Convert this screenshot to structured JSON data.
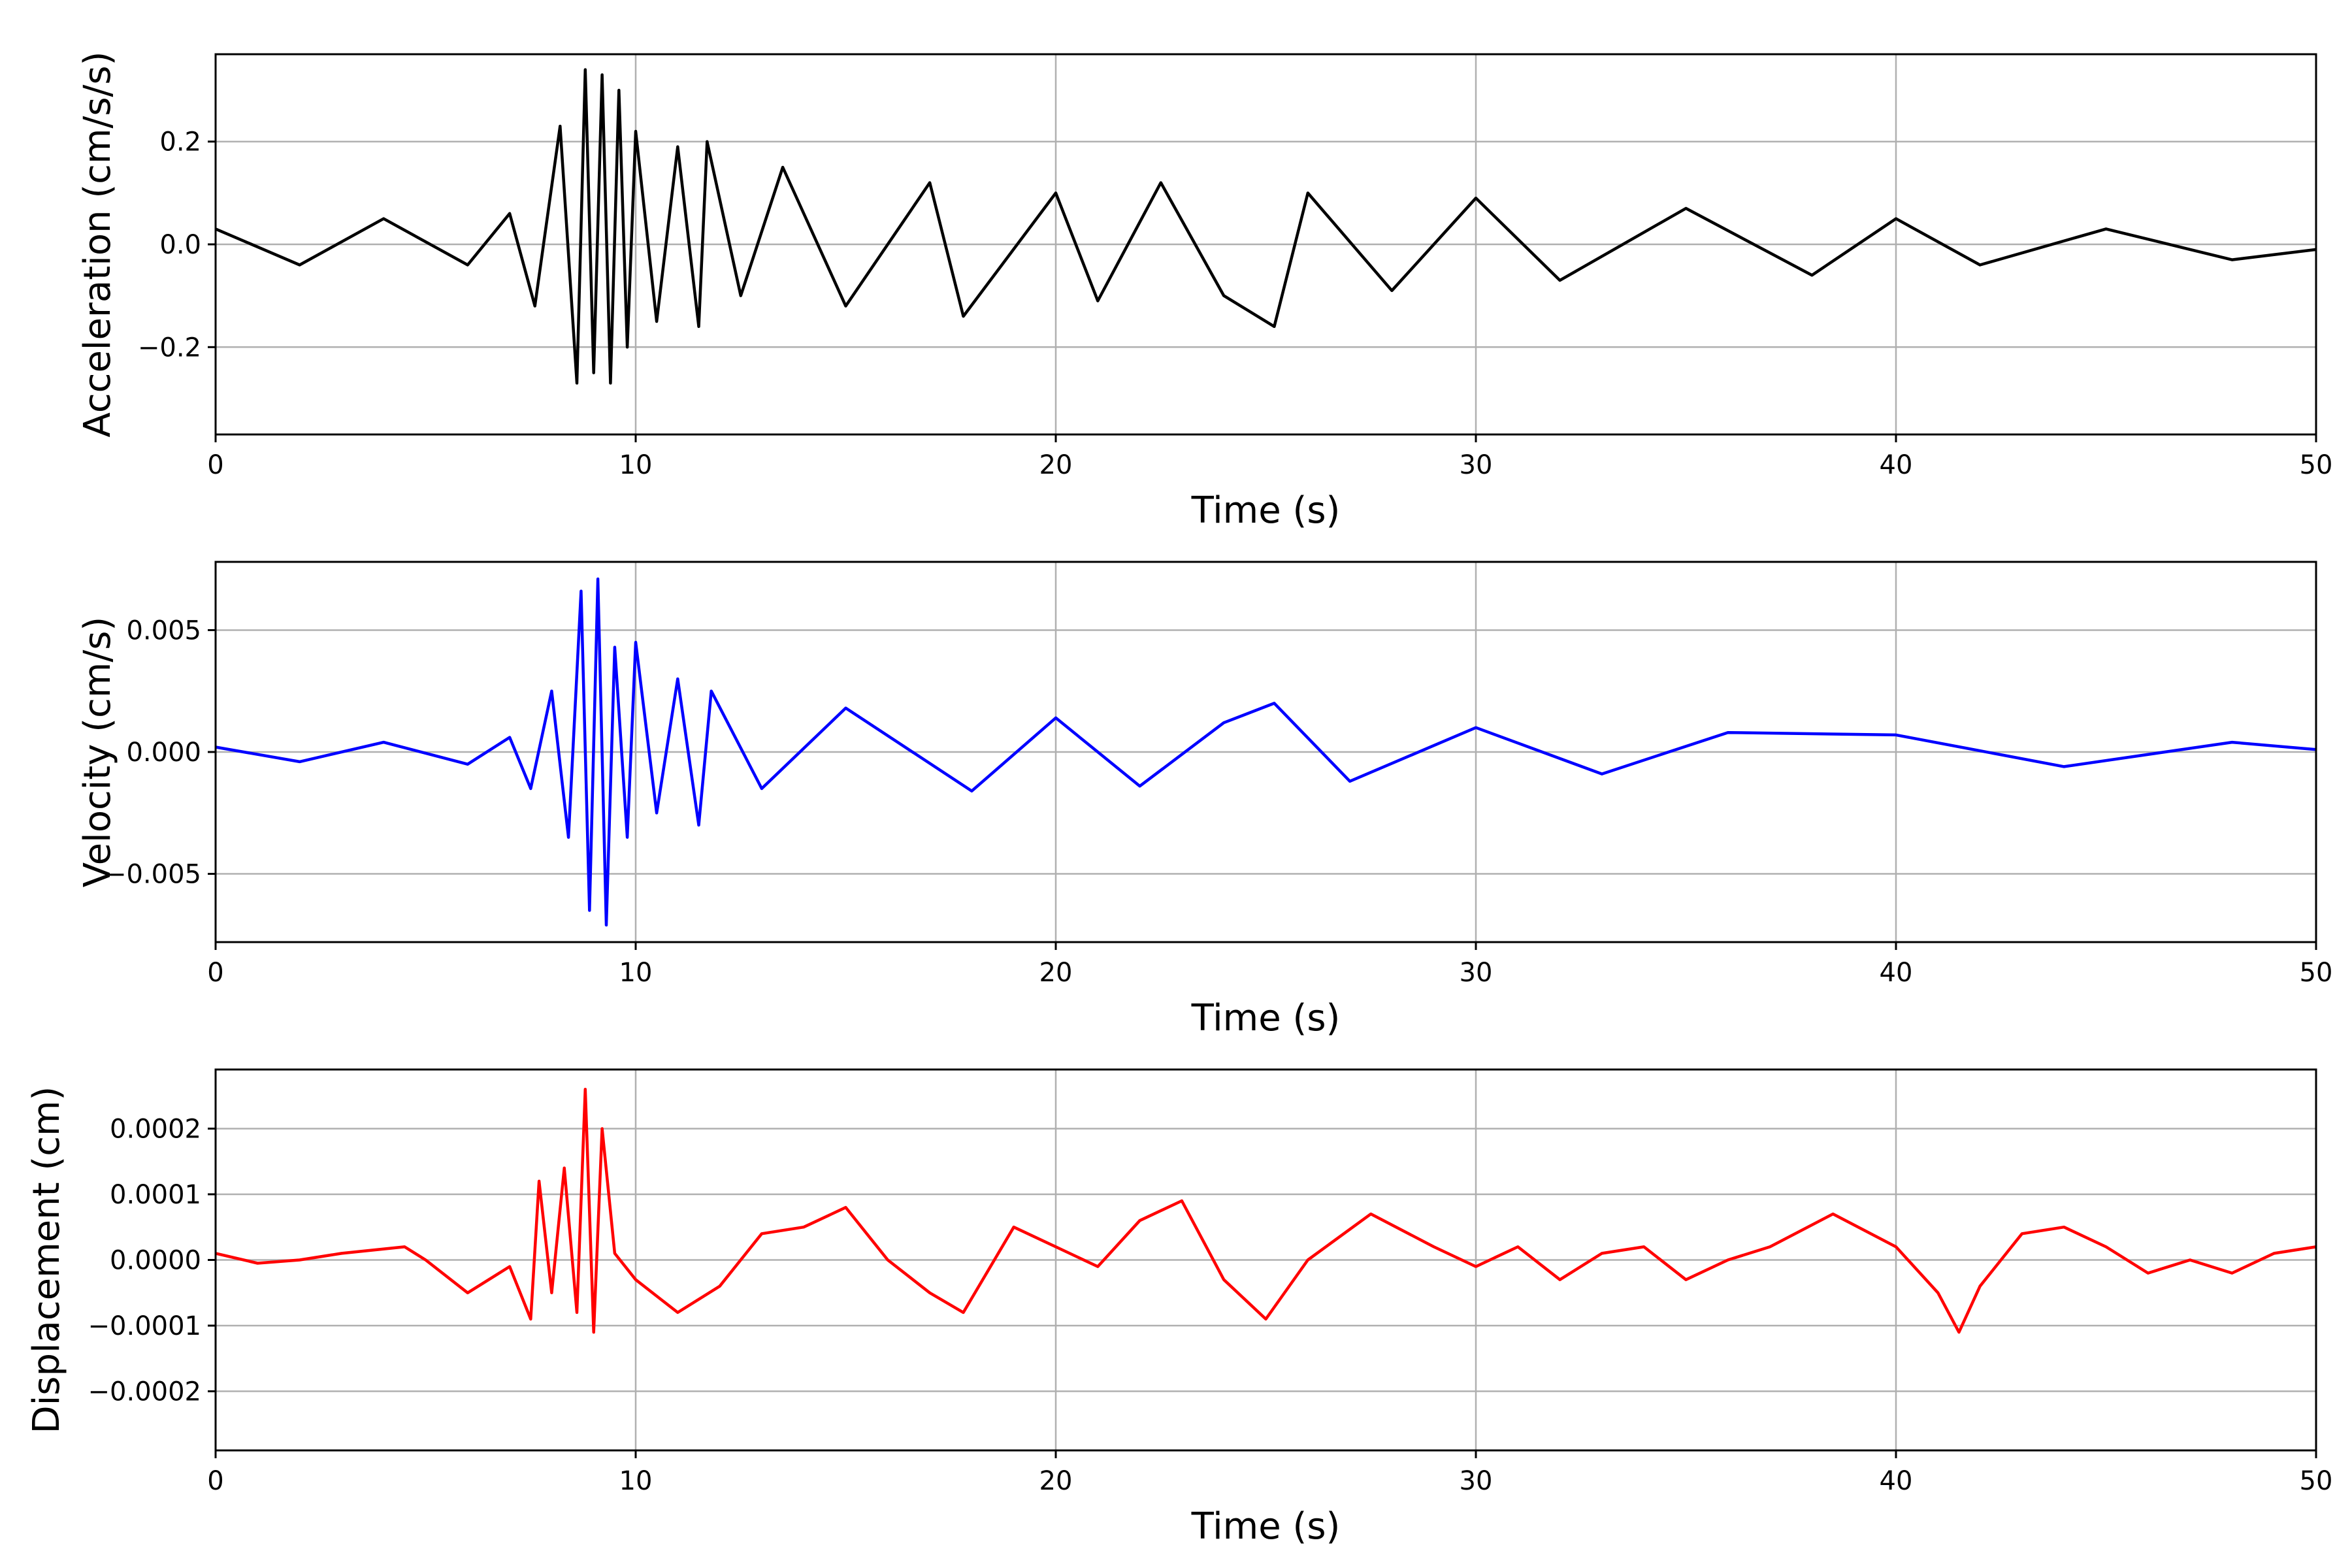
{
  "chart_data": [
    {
      "type": "line",
      "xlabel": "Time (s)",
      "ylabel": "Acceleration (cm/s/s)",
      "xlim": [
        0,
        50
      ],
      "ylim": [
        -0.37,
        0.37
      ],
      "xticks": [
        0,
        10,
        20,
        30,
        40,
        50
      ],
      "xtick_labels": [
        "0",
        "10",
        "20",
        "30",
        "40",
        "50"
      ],
      "yticks": [
        -0.2,
        0.0,
        0.2
      ],
      "ytick_labels": [
        "−0.2",
        "0.0",
        "0.2"
      ],
      "grid": true,
      "color": "#000000",
      "series": [
        {
          "x": [
            0,
            2,
            4,
            6,
            7,
            7.6,
            8.2,
            8.6,
            8.8,
            9.0,
            9.2,
            9.4,
            9.6,
            9.8,
            10.0,
            10.5,
            11.0,
            11.5,
            11.7,
            12.5,
            13.5,
            15,
            17,
            17.8,
            20,
            21,
            22.5,
            24,
            25.2,
            26,
            28,
            30,
            32,
            35,
            38,
            40,
            42,
            45,
            48,
            50
          ],
          "y": [
            0.03,
            -0.04,
            0.05,
            -0.04,
            0.06,
            -0.12,
            0.23,
            -0.27,
            0.34,
            -0.25,
            0.33,
            -0.27,
            0.3,
            -0.2,
            0.22,
            -0.15,
            0.19,
            -0.16,
            0.2,
            -0.1,
            0.15,
            -0.12,
            0.12,
            -0.14,
            0.1,
            -0.11,
            0.12,
            -0.1,
            -0.16,
            0.1,
            -0.09,
            0.09,
            -0.07,
            0.07,
            -0.06,
            0.05,
            -0.04,
            0.03,
            -0.03,
            -0.01
          ]
        }
      ]
    },
    {
      "type": "line",
      "xlabel": "Time (s)",
      "ylabel": "Velocity (cm/s)",
      "xlim": [
        0,
        50
      ],
      "ylim": [
        -0.0078,
        0.0078
      ],
      "xticks": [
        0,
        10,
        20,
        30,
        40,
        50
      ],
      "xtick_labels": [
        "0",
        "10",
        "20",
        "30",
        "40",
        "50"
      ],
      "yticks": [
        -0.005,
        0.0,
        0.005
      ],
      "ytick_labels": [
        "−0.005",
        "0.000",
        "0.005"
      ],
      "grid": true,
      "color": "#0000ff",
      "series": [
        {
          "x": [
            0,
            2,
            4,
            6,
            7,
            7.5,
            8.0,
            8.4,
            8.7,
            8.9,
            9.1,
            9.3,
            9.5,
            9.8,
            10.0,
            10.5,
            11.0,
            11.5,
            11.8,
            13,
            15,
            18,
            20,
            22,
            24,
            25.2,
            27,
            30,
            33,
            36,
            40,
            44,
            48,
            50
          ],
          "y": [
            0.0002,
            -0.0004,
            0.0004,
            -0.0005,
            0.0006,
            -0.0015,
            0.0025,
            -0.0035,
            0.0066,
            -0.0065,
            0.0071,
            -0.0071,
            0.0043,
            -0.0035,
            0.0045,
            -0.0025,
            0.003,
            -0.003,
            0.0025,
            -0.0015,
            0.0018,
            -0.0016,
            0.0014,
            -0.0014,
            0.0012,
            0.002,
            -0.0012,
            0.001,
            -0.0009,
            0.0008,
            0.0007,
            -0.0006,
            0.0004,
            0.0001
          ]
        }
      ]
    },
    {
      "type": "line",
      "xlabel": "Time (s)",
      "ylabel": "Displacement (cm)",
      "xlim": [
        0,
        50
      ],
      "ylim": [
        -0.00029,
        0.00029
      ],
      "xticks": [
        0,
        10,
        20,
        30,
        40,
        50
      ],
      "xtick_labels": [
        "0",
        "10",
        "20",
        "30",
        "40",
        "50"
      ],
      "yticks": [
        -0.0002,
        -0.0001,
        0.0,
        0.0001,
        0.0002
      ],
      "ytick_labels": [
        "−0.0002",
        "−0.0001",
        "0.0000",
        "0.0001",
        "0.0002"
      ],
      "grid": true,
      "color": "#ff0000",
      "series": [
        {
          "x": [
            0,
            1,
            2,
            3,
            4.5,
            5,
            6,
            7,
            7.5,
            7.7,
            8.0,
            8.3,
            8.6,
            8.8,
            9.0,
            9.2,
            9.5,
            10,
            11,
            12,
            13,
            14,
            15,
            16,
            17,
            17.8,
            19,
            20,
            21,
            22,
            23,
            24,
            25,
            26,
            27.5,
            29,
            30,
            31,
            32,
            33,
            34,
            35,
            36,
            37,
            38.5,
            40,
            41,
            41.5,
            42,
            43,
            44,
            45,
            46,
            47,
            48,
            49,
            50
          ],
          "y": [
            1e-05,
            -5e-06,
            0.0,
            1e-05,
            2e-05,
            0.0,
            -5e-05,
            -1e-05,
            -9e-05,
            0.00012,
            -5e-05,
            0.00014,
            -8e-05,
            0.00026,
            -0.00011,
            0.0002,
            1e-05,
            -3e-05,
            -8e-05,
            -4e-05,
            4e-05,
            5e-05,
            8e-05,
            0.0,
            -5e-05,
            -8e-05,
            5e-05,
            2e-05,
            -1e-05,
            6e-05,
            9e-05,
            -3e-05,
            -9e-05,
            0.0,
            7e-05,
            2e-05,
            -1e-05,
            2e-05,
            -3e-05,
            1e-05,
            2e-05,
            -3e-05,
            0.0,
            2e-05,
            7e-05,
            2e-05,
            -5e-05,
            -0.00011,
            -4e-05,
            4e-05,
            5e-05,
            2e-05,
            -2e-05,
            0.0,
            -2e-05,
            1e-05,
            2e-05
          ]
        }
      ]
    }
  ]
}
